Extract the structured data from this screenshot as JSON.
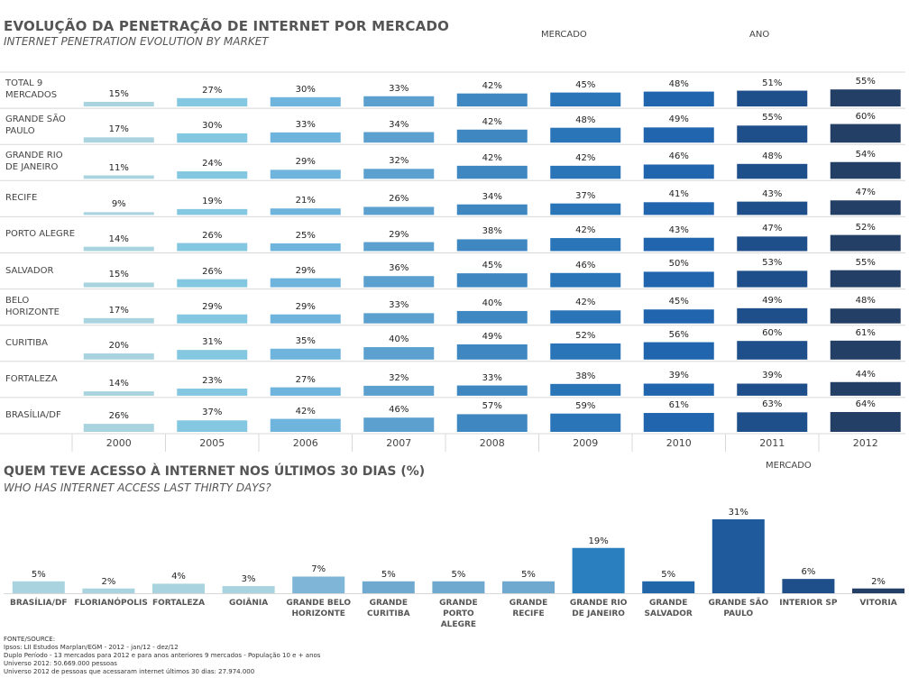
{
  "top": {
    "title": "EVOLUÇÃO DA PENETRAÇÃO DE INTERNET POR MERCADO",
    "subtitle": "INTERNET PENETRATION EVOLUTION BY MARKET",
    "control_mercado": "MERCADO",
    "control_ano": "ANO"
  },
  "bottom": {
    "title": "QUEM TEVE ACESSO À INTERNET NOS ÚLTIMOS 30 DIAS (%)",
    "subtitle": "WHO HAS INTERNET ACCESS LAST THIRTY DAYS?",
    "control_mercado": "MERCADO"
  },
  "source": {
    "lines": [
      "FONTE/SOURCE:",
      "Ipsos: LII Estudos Marplan/EGM - 2012 - jan/12 - dez/12",
      "Duplo Período - 13 mercados para 2012 e para anos anteriores 9 mercados  - População 10 e + anos",
      "Universo 2012: 50.669.000 pessoas",
      "Universo 2012 de pessoas que acessaram  internet últimos 30 dias:  27.974.000"
    ]
  },
  "colors": {
    "years": [
      "#a9d3de",
      "#84c7e0",
      "#6fb4dc",
      "#5ba0cf",
      "#3f87c0",
      "#2a75b8",
      "#2065ad",
      "#1f4f8a",
      "#243f66"
    ],
    "bottom_bar": "#a9d3de",
    "bottom_highlight": "#2065ad"
  },
  "chart_data": [
    {
      "type": "bar",
      "title": "EVOLUÇÃO DA PENETRAÇÃO DE INTERNET POR MERCADO",
      "x": [
        "2000",
        "2005",
        "2006",
        "2007",
        "2008",
        "2009",
        "2010",
        "2011",
        "2012"
      ],
      "unit": "%",
      "grid": true,
      "series": [
        {
          "name": "TOTAL 9 MERCADOS",
          "values": [
            15,
            27,
            30,
            33,
            42,
            45,
            48,
            51,
            55
          ]
        },
        {
          "name": "GRANDE SÃO PAULO",
          "values": [
            17,
            30,
            33,
            34,
            42,
            48,
            49,
            55,
            60
          ]
        },
        {
          "name": "GRANDE RIO DE JANEIRO",
          "values": [
            11,
            24,
            29,
            32,
            42,
            42,
            46,
            48,
            54
          ]
        },
        {
          "name": "RECIFE",
          "values": [
            9,
            19,
            21,
            26,
            34,
            37,
            41,
            43,
            47
          ]
        },
        {
          "name": "PORTO ALEGRE",
          "values": [
            14,
            26,
            25,
            29,
            38,
            42,
            43,
            47,
            52
          ]
        },
        {
          "name": "SALVADOR",
          "values": [
            15,
            26,
            29,
            36,
            45,
            46,
            50,
            53,
            55
          ]
        },
        {
          "name": "BELO HORIZONTE",
          "values": [
            17,
            29,
            29,
            33,
            40,
            42,
            45,
            49,
            48
          ]
        },
        {
          "name": "CURITIBA",
          "values": [
            20,
            31,
            35,
            40,
            49,
            52,
            56,
            60,
            61
          ]
        },
        {
          "name": "FORTALEZA",
          "values": [
            14,
            23,
            27,
            32,
            33,
            38,
            39,
            39,
            44
          ]
        },
        {
          "name": "BRASÍLIA/DF",
          "values": [
            26,
            37,
            42,
            46,
            57,
            59,
            61,
            63,
            64
          ]
        }
      ]
    },
    {
      "type": "bar",
      "title": "QUEM TEVE ACESSO À INTERNET NOS ÚLTIMOS 30 DIAS (%)",
      "categories": [
        "BRASÍLIA/DF",
        "FLORIANÓPOLIS",
        "FORTALEZA",
        "GOIÂNIA",
        "GRANDE BELO HORIZONTE",
        "GRANDE CURITIBA",
        "GRANDE PORTO ALEGRE",
        "GRANDE RECIFE",
        "GRANDE RIO DE JANEIRO",
        "GRANDE SALVADOR",
        "GRANDE SÃO PAULO",
        "INTERIOR SP",
        "VITORIA"
      ],
      "values": [
        5,
        2,
        4,
        3,
        7,
        5,
        5,
        5,
        19,
        5,
        31,
        6,
        2
      ],
      "unit": "%"
    }
  ]
}
